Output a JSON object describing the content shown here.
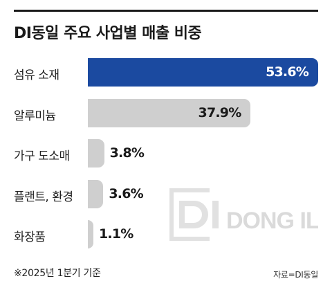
{
  "title": "DI동일 주요 사업별 매출 비중",
  "footnote": "※2025년 1분기 기준",
  "source": "자료=DI동일",
  "watermark": "DI DONG IL",
  "colors": {
    "highlight": "#1b4aa0",
    "default_bar": "#cfcfcf",
    "text": "#1a1a1a"
  },
  "chart_data": {
    "type": "bar",
    "orientation": "horizontal",
    "title": "DI동일 주요 사업별 매출 비중",
    "categories": [
      "섬유 소재",
      "알루미늄",
      "가구 도소매",
      "플랜트, 환경",
      "화장품"
    ],
    "values": [
      53.6,
      37.9,
      3.8,
      3.6,
      1.1
    ],
    "value_labels": [
      "53.6%",
      "37.9%",
      "3.8%",
      "3.6%",
      "1.1%"
    ],
    "unit": "%",
    "highlighted_index": 0,
    "xlim": [
      0,
      53.6
    ],
    "grid": false,
    "legend": "none"
  }
}
